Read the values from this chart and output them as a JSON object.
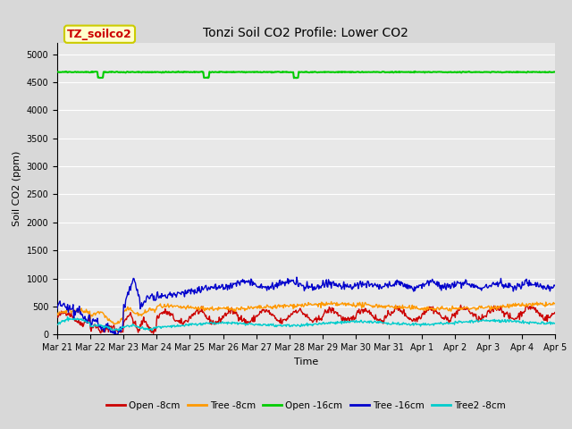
{
  "title": "Tonzi Soil CO2 Profile: Lower CO2",
  "ylabel": "Soil CO2 (ppm)",
  "xlabel": "Time",
  "annotation_text": "TZ_soilco2",
  "annotation_bg": "#ffffcc",
  "annotation_border": "#cccc00",
  "annotation_text_color": "#cc0000",
  "ylim": [
    0,
    5200
  ],
  "yticks": [
    0,
    500,
    1000,
    1500,
    2000,
    2500,
    3000,
    3500,
    4000,
    4500,
    5000
  ],
  "bg_color": "#d8d8d8",
  "plot_bg": "#e8e8e8",
  "grid_color": "#ffffff",
  "series": {
    "open_8cm": {
      "label": "Open -8cm",
      "color": "#cc0000",
      "lw": 1.0
    },
    "tree_8cm": {
      "label": "Tree -8cm",
      "color": "#ff9900",
      "lw": 1.0
    },
    "open_16cm": {
      "label": "Open -16cm",
      "color": "#00cc00",
      "lw": 1.5
    },
    "tree_16cm": {
      "label": "Tree -16cm",
      "color": "#0000cc",
      "lw": 1.0
    },
    "tree2_8cm": {
      "label": "Tree2 -8cm",
      "color": "#00cccc",
      "lw": 1.0
    }
  },
  "n_days": 15,
  "pts_per_day": 48,
  "seed": 42,
  "title_fontsize": 10,
  "axis_label_fontsize": 8,
  "tick_fontsize": 7,
  "legend_fontsize": 7.5,
  "annotation_fontsize": 9
}
